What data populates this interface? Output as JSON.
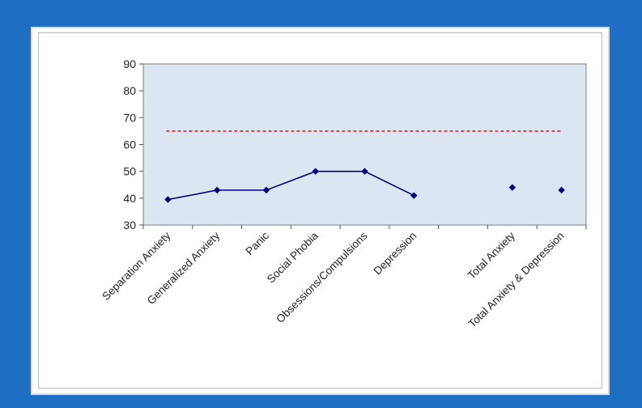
{
  "chart_data": {
    "type": "line",
    "title": "",
    "xlabel": "",
    "ylabel": "",
    "ylim": [
      30,
      90
    ],
    "yticks": [
      30,
      40,
      50,
      60,
      70,
      80,
      90
    ],
    "grid": false,
    "legend": "none",
    "categories": [
      "Separation Anxiety",
      "Generalized Anxiety",
      "Panic",
      "Social Phobia",
      "Obsessions/Compulsions",
      "Depression",
      "",
      "Total Anxiety",
      "Total Anxiety & Depression"
    ],
    "series": [
      {
        "values": [
          39.5,
          43,
          43,
          50,
          50,
          41,
          null,
          null,
          null
        ],
        "color": "#00007f",
        "style": "line-markers"
      },
      {
        "values": [
          null,
          null,
          null,
          null,
          null,
          null,
          null,
          44,
          43
        ],
        "color": "#00007f",
        "style": "markers-only"
      }
    ],
    "reference_line": {
      "value": 65,
      "color": "#e8202a",
      "style": "dashed"
    },
    "plot_background": "#dce6f2"
  }
}
